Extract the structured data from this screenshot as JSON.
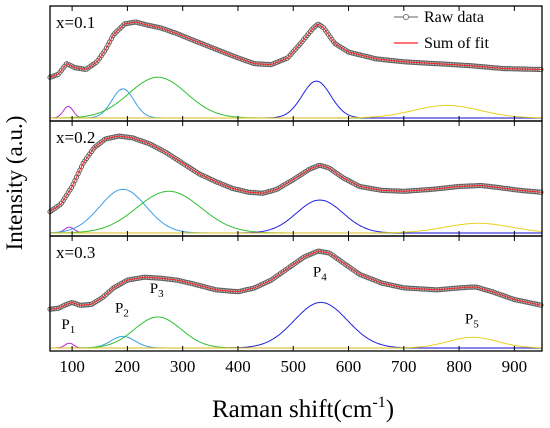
{
  "chart_data": {
    "type": "line",
    "xlabel": "Raman shift(cm⁻¹)",
    "ylabel": "Intensity (a.u.)",
    "xlim": [
      60,
      950
    ],
    "x_ticks": [
      "100",
      "200",
      "300",
      "400",
      "500",
      "600",
      "700",
      "800",
      "900"
    ],
    "grid": false,
    "legend": {
      "placement": "top-right",
      "entries": [
        {
          "label": "Raw data",
          "color": "#808080"
        },
        {
          "label": "Sum of fit",
          "color": "#ff2020"
        }
      ]
    },
    "colors": {
      "raw": "#606060",
      "fit": "#ff2020",
      "P1": "#b030d0",
      "P2": "#3aa0e8",
      "P3": "#30c030",
      "P4": "#2020e0",
      "P5": "#e8d020",
      "baseline": "#c8a0e8"
    },
    "peak_labels": [
      {
        "main": "P",
        "sub": "1"
      },
      {
        "main": "P",
        "sub": "2"
      },
      {
        "main": "P",
        "sub": "3"
      },
      {
        "main": "P",
        "sub": "4"
      },
      {
        "main": "P",
        "sub": "5"
      }
    ],
    "panels": [
      {
        "label": "x=0.1",
        "peak_labels_shown": false,
        "peaks": [
          {
            "name": "P1",
            "center": 93,
            "height": 0.12,
            "width": 9
          },
          {
            "name": "P2",
            "center": 192,
            "height": 0.3,
            "width": 20
          },
          {
            "name": "P3",
            "center": 255,
            "height": 0.42,
            "width": 52
          },
          {
            "name": "P4",
            "center": 542,
            "height": 0.38,
            "width": 26
          },
          {
            "name": "P5",
            "center": 778,
            "height": 0.13,
            "width": 60
          }
        ],
        "fit_points": [
          [
            60,
            0.42
          ],
          [
            75,
            0.45
          ],
          [
            90,
            0.56
          ],
          [
            105,
            0.52
          ],
          [
            125,
            0.5
          ],
          [
            145,
            0.58
          ],
          [
            160,
            0.7
          ],
          [
            175,
            0.86
          ],
          [
            195,
            0.97
          ],
          [
            215,
            0.99
          ],
          [
            235,
            0.96
          ],
          [
            260,
            0.93
          ],
          [
            290,
            0.87
          ],
          [
            320,
            0.8
          ],
          [
            360,
            0.71
          ],
          [
            400,
            0.62
          ],
          [
            430,
            0.56
          ],
          [
            460,
            0.55
          ],
          [
            490,
            0.62
          ],
          [
            515,
            0.78
          ],
          [
            535,
            0.92
          ],
          [
            545,
            0.97
          ],
          [
            555,
            0.93
          ],
          [
            575,
            0.77
          ],
          [
            600,
            0.68
          ],
          [
            650,
            0.61
          ],
          [
            700,
            0.58
          ],
          [
            760,
            0.56
          ],
          [
            820,
            0.54
          ],
          [
            880,
            0.51
          ],
          [
            950,
            0.5
          ]
        ]
      },
      {
        "label": "x=0.2",
        "peak_labels_shown": false,
        "peaks": [
          {
            "name": "P1",
            "center": 95,
            "height": 0.06,
            "width": 9
          },
          {
            "name": "P2",
            "center": 192,
            "height": 0.45,
            "width": 42
          },
          {
            "name": "P3",
            "center": 275,
            "height": 0.43,
            "width": 58
          },
          {
            "name": "P4",
            "center": 548,
            "height": 0.34,
            "width": 42
          },
          {
            "name": "P5",
            "center": 835,
            "height": 0.1,
            "width": 60
          }
        ],
        "fit_points": [
          [
            60,
            0.22
          ],
          [
            80,
            0.3
          ],
          [
            100,
            0.48
          ],
          [
            120,
            0.72
          ],
          [
            140,
            0.88
          ],
          [
            160,
            0.97
          ],
          [
            185,
            1.0
          ],
          [
            210,
            0.98
          ],
          [
            240,
            0.92
          ],
          [
            270,
            0.83
          ],
          [
            300,
            0.72
          ],
          [
            330,
            0.61
          ],
          [
            360,
            0.53
          ],
          [
            390,
            0.46
          ],
          [
            420,
            0.42
          ],
          [
            445,
            0.41
          ],
          [
            470,
            0.45
          ],
          [
            500,
            0.55
          ],
          [
            530,
            0.66
          ],
          [
            548,
            0.7
          ],
          [
            565,
            0.67
          ],
          [
            590,
            0.57
          ],
          [
            620,
            0.48
          ],
          [
            660,
            0.44
          ],
          [
            700,
            0.43
          ],
          [
            750,
            0.45
          ],
          [
            800,
            0.48
          ],
          [
            840,
            0.49
          ],
          [
            870,
            0.47
          ],
          [
            910,
            0.44
          ],
          [
            950,
            0.42
          ]
        ]
      },
      {
        "label": "x=0.3",
        "peak_labels_shown": true,
        "peaks": [
          {
            "name": "P1",
            "center": 95,
            "height": 0.05,
            "width": 8
          },
          {
            "name": "P2",
            "center": 192,
            "height": 0.12,
            "width": 22
          },
          {
            "name": "P3",
            "center": 255,
            "height": 0.32,
            "width": 42
          },
          {
            "name": "P4",
            "center": 550,
            "height": 0.47,
            "width": 48
          },
          {
            "name": "P5",
            "center": 825,
            "height": 0.11,
            "width": 45
          }
        ],
        "fit_points": [
          [
            60,
            0.4
          ],
          [
            75,
            0.41
          ],
          [
            90,
            0.45
          ],
          [
            100,
            0.47
          ],
          [
            115,
            0.44
          ],
          [
            135,
            0.45
          ],
          [
            155,
            0.52
          ],
          [
            175,
            0.62
          ],
          [
            200,
            0.7
          ],
          [
            230,
            0.73
          ],
          [
            260,
            0.72
          ],
          [
            290,
            0.7
          ],
          [
            320,
            0.66
          ],
          [
            360,
            0.6
          ],
          [
            400,
            0.58
          ],
          [
            430,
            0.62
          ],
          [
            460,
            0.7
          ],
          [
            490,
            0.82
          ],
          [
            520,
            0.94
          ],
          [
            545,
            1.0
          ],
          [
            565,
            0.98
          ],
          [
            590,
            0.88
          ],
          [
            620,
            0.76
          ],
          [
            660,
            0.67
          ],
          [
            700,
            0.62
          ],
          [
            760,
            0.6
          ],
          [
            800,
            0.62
          ],
          [
            830,
            0.63
          ],
          [
            860,
            0.58
          ],
          [
            900,
            0.5
          ],
          [
            950,
            0.44
          ]
        ]
      }
    ]
  }
}
